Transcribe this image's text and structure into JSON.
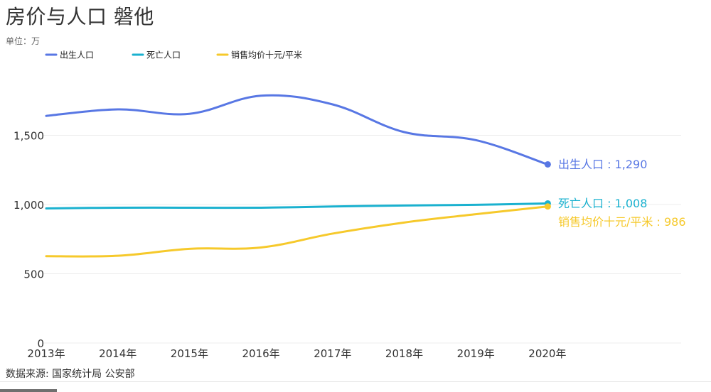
{
  "title": "房价与人口 磐他",
  "unit_label": "单位：万",
  "source": "数据来源: 国家统计局 公安部",
  "colors": {
    "births": "#5877e4",
    "deaths": "#1ab1cf",
    "price": "#f6c92b",
    "grid": "#ececec",
    "text": "#333333"
  },
  "chart_data": {
    "type": "line",
    "categories": [
      "2013年",
      "2014年",
      "2015年",
      "2016年",
      "2017年",
      "2018年",
      "2019年",
      "2020年"
    ],
    "series": [
      {
        "name": "出生人口",
        "values": [
          1640,
          1687,
          1655,
          1786,
          1723,
          1523,
          1465,
          1290
        ],
        "end_label": "出生人口 : 1,290"
      },
      {
        "name": "死亡人口",
        "values": [
          972,
          977,
          977,
          977,
          986,
          993,
          998,
          1008
        ],
        "end_label": "死亡人口 : 1,008"
      },
      {
        "name": "销售均价十元/平米",
        "values": [
          627,
          630,
          680,
          690,
          790,
          870,
          930,
          986
        ],
        "end_label": "销售均价十元/平米 : 986"
      }
    ],
    "y_ticks": [
      "0",
      "500",
      "1,000",
      "1,500"
    ],
    "y_tick_values": [
      0,
      500,
      1000,
      1500
    ],
    "ylim": [
      0,
      1900
    ],
    "legend_position": "top-left",
    "grid": true
  }
}
